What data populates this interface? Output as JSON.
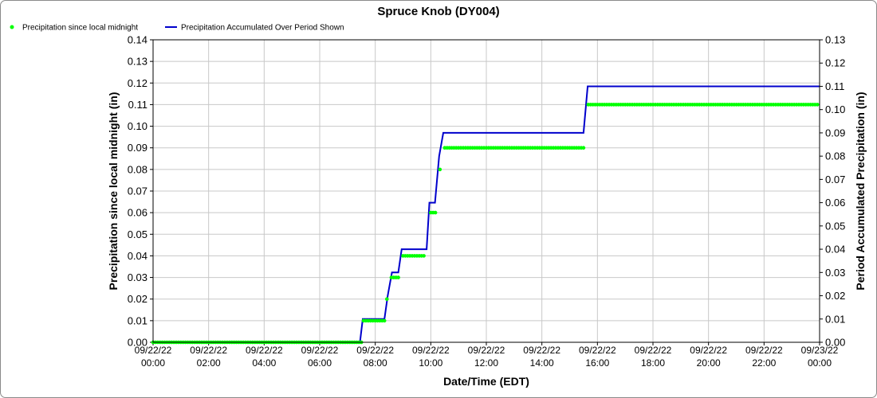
{
  "chart_data": {
    "type": "line",
    "title": "Spruce Knob (DY004)",
    "xlabel": "Date/Time (EDT)",
    "ylabel": "Precipitation since local midnight (in)",
    "y2label": "Period Accumulated Precipitation (in)",
    "x_ticks": [
      [
        "09/22/22",
        "00:00"
      ],
      [
        "09/22/22",
        "02:00"
      ],
      [
        "09/22/22",
        "04:00"
      ],
      [
        "09/22/22",
        "06:00"
      ],
      [
        "09/22/22",
        "08:00"
      ],
      [
        "09/22/22",
        "10:00"
      ],
      [
        "09/22/22",
        "12:00"
      ],
      [
        "09/22/22",
        "14:00"
      ],
      [
        "09/22/22",
        "16:00"
      ],
      [
        "09/22/22",
        "18:00"
      ],
      [
        "09/22/22",
        "20:00"
      ],
      [
        "09/22/22",
        "22:00"
      ],
      [
        "09/23/22",
        "00:00"
      ]
    ],
    "xlim": [
      0,
      24
    ],
    "ylim": [
      0,
      0.14
    ],
    "y_ticks": [
      "0.00",
      "0.01",
      "0.02",
      "0.03",
      "0.04",
      "0.05",
      "0.06",
      "0.07",
      "0.08",
      "0.09",
      "0.10",
      "0.11",
      "0.12",
      "0.13",
      "0.14"
    ],
    "y2lim": [
      0,
      0.13
    ],
    "y2_ticks": [
      "0.00",
      "0.01",
      "0.02",
      "0.03",
      "0.04",
      "0.05",
      "0.06",
      "0.07",
      "0.08",
      "0.09",
      "0.10",
      "0.11",
      "0.12",
      "0.13"
    ],
    "grid": true,
    "legend_position": "top-left",
    "series": [
      {
        "name": "Precipitation since local midnight",
        "kind": "scatter",
        "color": "#00ff00",
        "axis": "left",
        "segments": [
          {
            "start": 0.0,
            "end": 7.5,
            "value": 0.0
          },
          {
            "start": 7.58,
            "end": 8.33,
            "value": 0.01
          },
          {
            "start": 8.42,
            "end": 8.42,
            "value": 0.02
          },
          {
            "start": 8.58,
            "end": 8.83,
            "value": 0.03
          },
          {
            "start": 9.0,
            "end": 9.83,
            "value": 0.04
          },
          {
            "start": 10.0,
            "end": 10.17,
            "value": 0.06
          },
          {
            "start": 10.33,
            "end": 10.33,
            "value": 0.08
          },
          {
            "start": 10.5,
            "end": 15.5,
            "value": 0.09
          },
          {
            "start": 15.67,
            "end": 24.0,
            "value": 0.11
          }
        ]
      },
      {
        "name": "Precipitation Accumulated Over Period Shown",
        "kind": "line",
        "color": "#0000cc",
        "axis": "right",
        "x": [
          0,
          7.45,
          7.55,
          7.55,
          8.33,
          8.45,
          8.6,
          8.83,
          8.95,
          9.85,
          9.95,
          10.15,
          10.3,
          10.45,
          10.55,
          15.5,
          15.65,
          24
        ],
        "y": [
          0,
          0,
          0.01,
          0.01,
          0.01,
          0.02,
          0.03,
          0.03,
          0.04,
          0.04,
          0.06,
          0.06,
          0.08,
          0.09,
          0.09,
          0.09,
          0.11,
          0.11
        ]
      }
    ]
  }
}
